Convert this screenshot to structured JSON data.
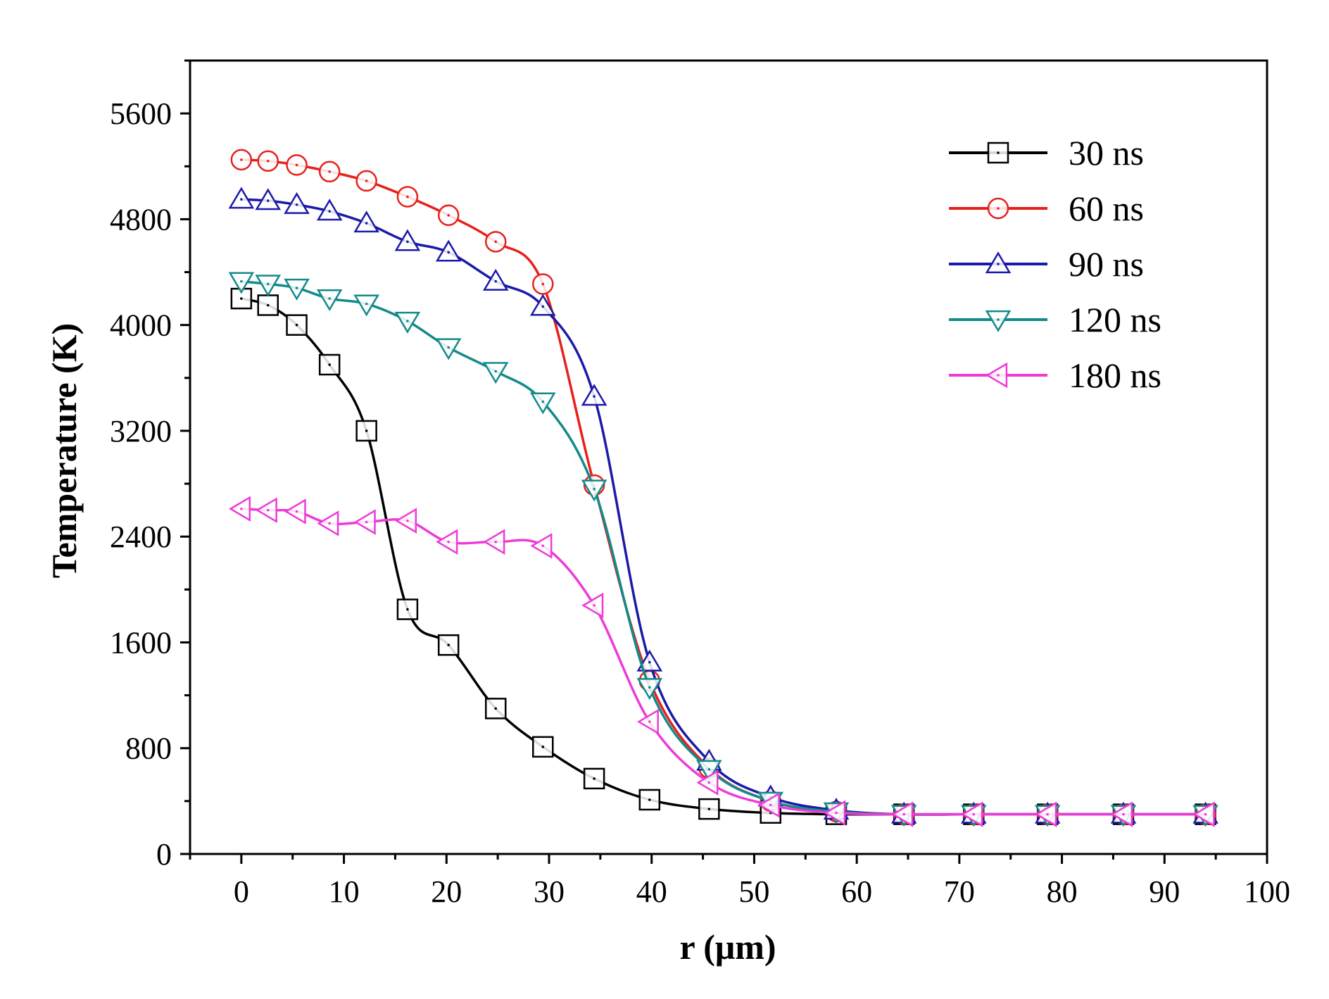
{
  "chart_data": {
    "type": "line",
    "title": "",
    "xlabel": "r (μm)",
    "ylabel": "Temperature (K)",
    "xlim": [
      -5,
      100
    ],
    "ylim": [
      0,
      6000
    ],
    "xticks": [
      0,
      10,
      20,
      30,
      40,
      50,
      60,
      70,
      80,
      90,
      100
    ],
    "yticks": [
      0,
      800,
      1600,
      2400,
      3200,
      4000,
      4800,
      5600
    ],
    "legend_position": "top-right",
    "grid": false,
    "series": [
      {
        "name": "30 ns",
        "color": "#000000",
        "marker": "square",
        "x": [
          0,
          2.6,
          5.4,
          8.6,
          12.2,
          16.2,
          20.2,
          24.8,
          29.4,
          34.4,
          39.8,
          45.6,
          51.6,
          58.0,
          64.6,
          71.4,
          78.6,
          86.0,
          94.0
        ],
        "y": [
          4200,
          4150,
          4000,
          3700,
          3200,
          1850,
          1580,
          1100,
          810,
          570,
          410,
          340,
          310,
          300,
          300,
          300,
          300,
          300,
          300
        ]
      },
      {
        "name": "60 ns",
        "color": "#e8201c",
        "marker": "circle",
        "x": [
          0,
          2.6,
          5.4,
          8.6,
          12.2,
          16.2,
          20.2,
          24.8,
          29.4,
          34.4,
          39.8,
          45.6,
          51.6,
          58.0,
          64.6,
          71.4,
          78.6,
          86.0,
          94.0
        ],
        "y": [
          5250,
          5240,
          5210,
          5160,
          5090,
          4970,
          4830,
          4630,
          4310,
          2790,
          1310,
          650,
          400,
          320,
          300,
          300,
          300,
          300,
          300
        ]
      },
      {
        "name": "90 ns",
        "color": "#1a1aa8",
        "marker": "triangle-up",
        "x": [
          0,
          2.6,
          5.4,
          8.6,
          12.2,
          16.2,
          20.2,
          24.8,
          29.4,
          34.4,
          39.8,
          45.6,
          51.6,
          58.0,
          64.6,
          71.4,
          78.6,
          86.0,
          94.0
        ],
        "y": [
          4950,
          4940,
          4910,
          4860,
          4770,
          4630,
          4550,
          4330,
          4140,
          3460,
          1450,
          700,
          430,
          330,
          300,
          300,
          300,
          300,
          300
        ]
      },
      {
        "name": "120 ns",
        "color": "#138a8a",
        "marker": "triangle-down",
        "x": [
          0,
          2.6,
          5.4,
          8.6,
          12.2,
          16.2,
          20.2,
          24.8,
          29.4,
          34.4,
          39.8,
          45.6,
          51.6,
          58.0,
          64.6,
          71.4,
          78.6,
          86.0,
          94.0
        ],
        "y": [
          4330,
          4310,
          4280,
          4200,
          4160,
          4030,
          3830,
          3650,
          3420,
          2760,
          1260,
          640,
          400,
          320,
          300,
          300,
          300,
          300,
          300
        ]
      },
      {
        "name": "180 ns",
        "color": "#ee3bd8",
        "marker": "triangle-left",
        "x": [
          0,
          2.6,
          5.4,
          8.6,
          12.2,
          16.2,
          20.2,
          24.8,
          29.4,
          34.4,
          39.8,
          45.6,
          51.6,
          58.0,
          64.6,
          71.4,
          78.6,
          86.0,
          94.0
        ],
        "y": [
          2610,
          2600,
          2590,
          2500,
          2510,
          2520,
          2360,
          2360,
          2330,
          1880,
          1000,
          540,
          370,
          310,
          300,
          300,
          300,
          300,
          300
        ]
      }
    ]
  }
}
